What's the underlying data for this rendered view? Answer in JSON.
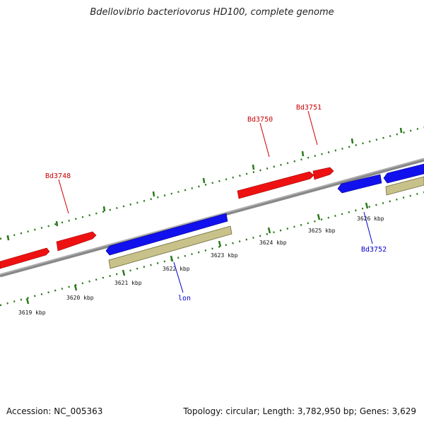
{
  "title": "Bdellovibrio bacteriovorus HD100, complete genome",
  "footer": {
    "accession": "Accession: NC_005363",
    "summary": "Topology: circular; Length: 3,782,950 bp; Genes: 3,629"
  },
  "colors": {
    "forward_gene": "#ff0000",
    "reverse_gene": "#0000ff",
    "feature": "#c8c28a",
    "tick": "#2a7a1a",
    "backbone": "#888888",
    "forward_label": "#cc0000",
    "reverse_label": "#0000cc"
  },
  "ruler": {
    "unit": "kbp",
    "labels": [
      "3619 kbp",
      "3620 kbp",
      "3621 kbp",
      "3622 kbp",
      "3623 kbp",
      "3624 kbp",
      "3625 kbp",
      "3626 kbp"
    ]
  },
  "genes": {
    "forward": [
      "Bd3748",
      "Bd3750",
      "Bd3751"
    ],
    "reverse": [
      "lon",
      "Bd3752"
    ]
  }
}
